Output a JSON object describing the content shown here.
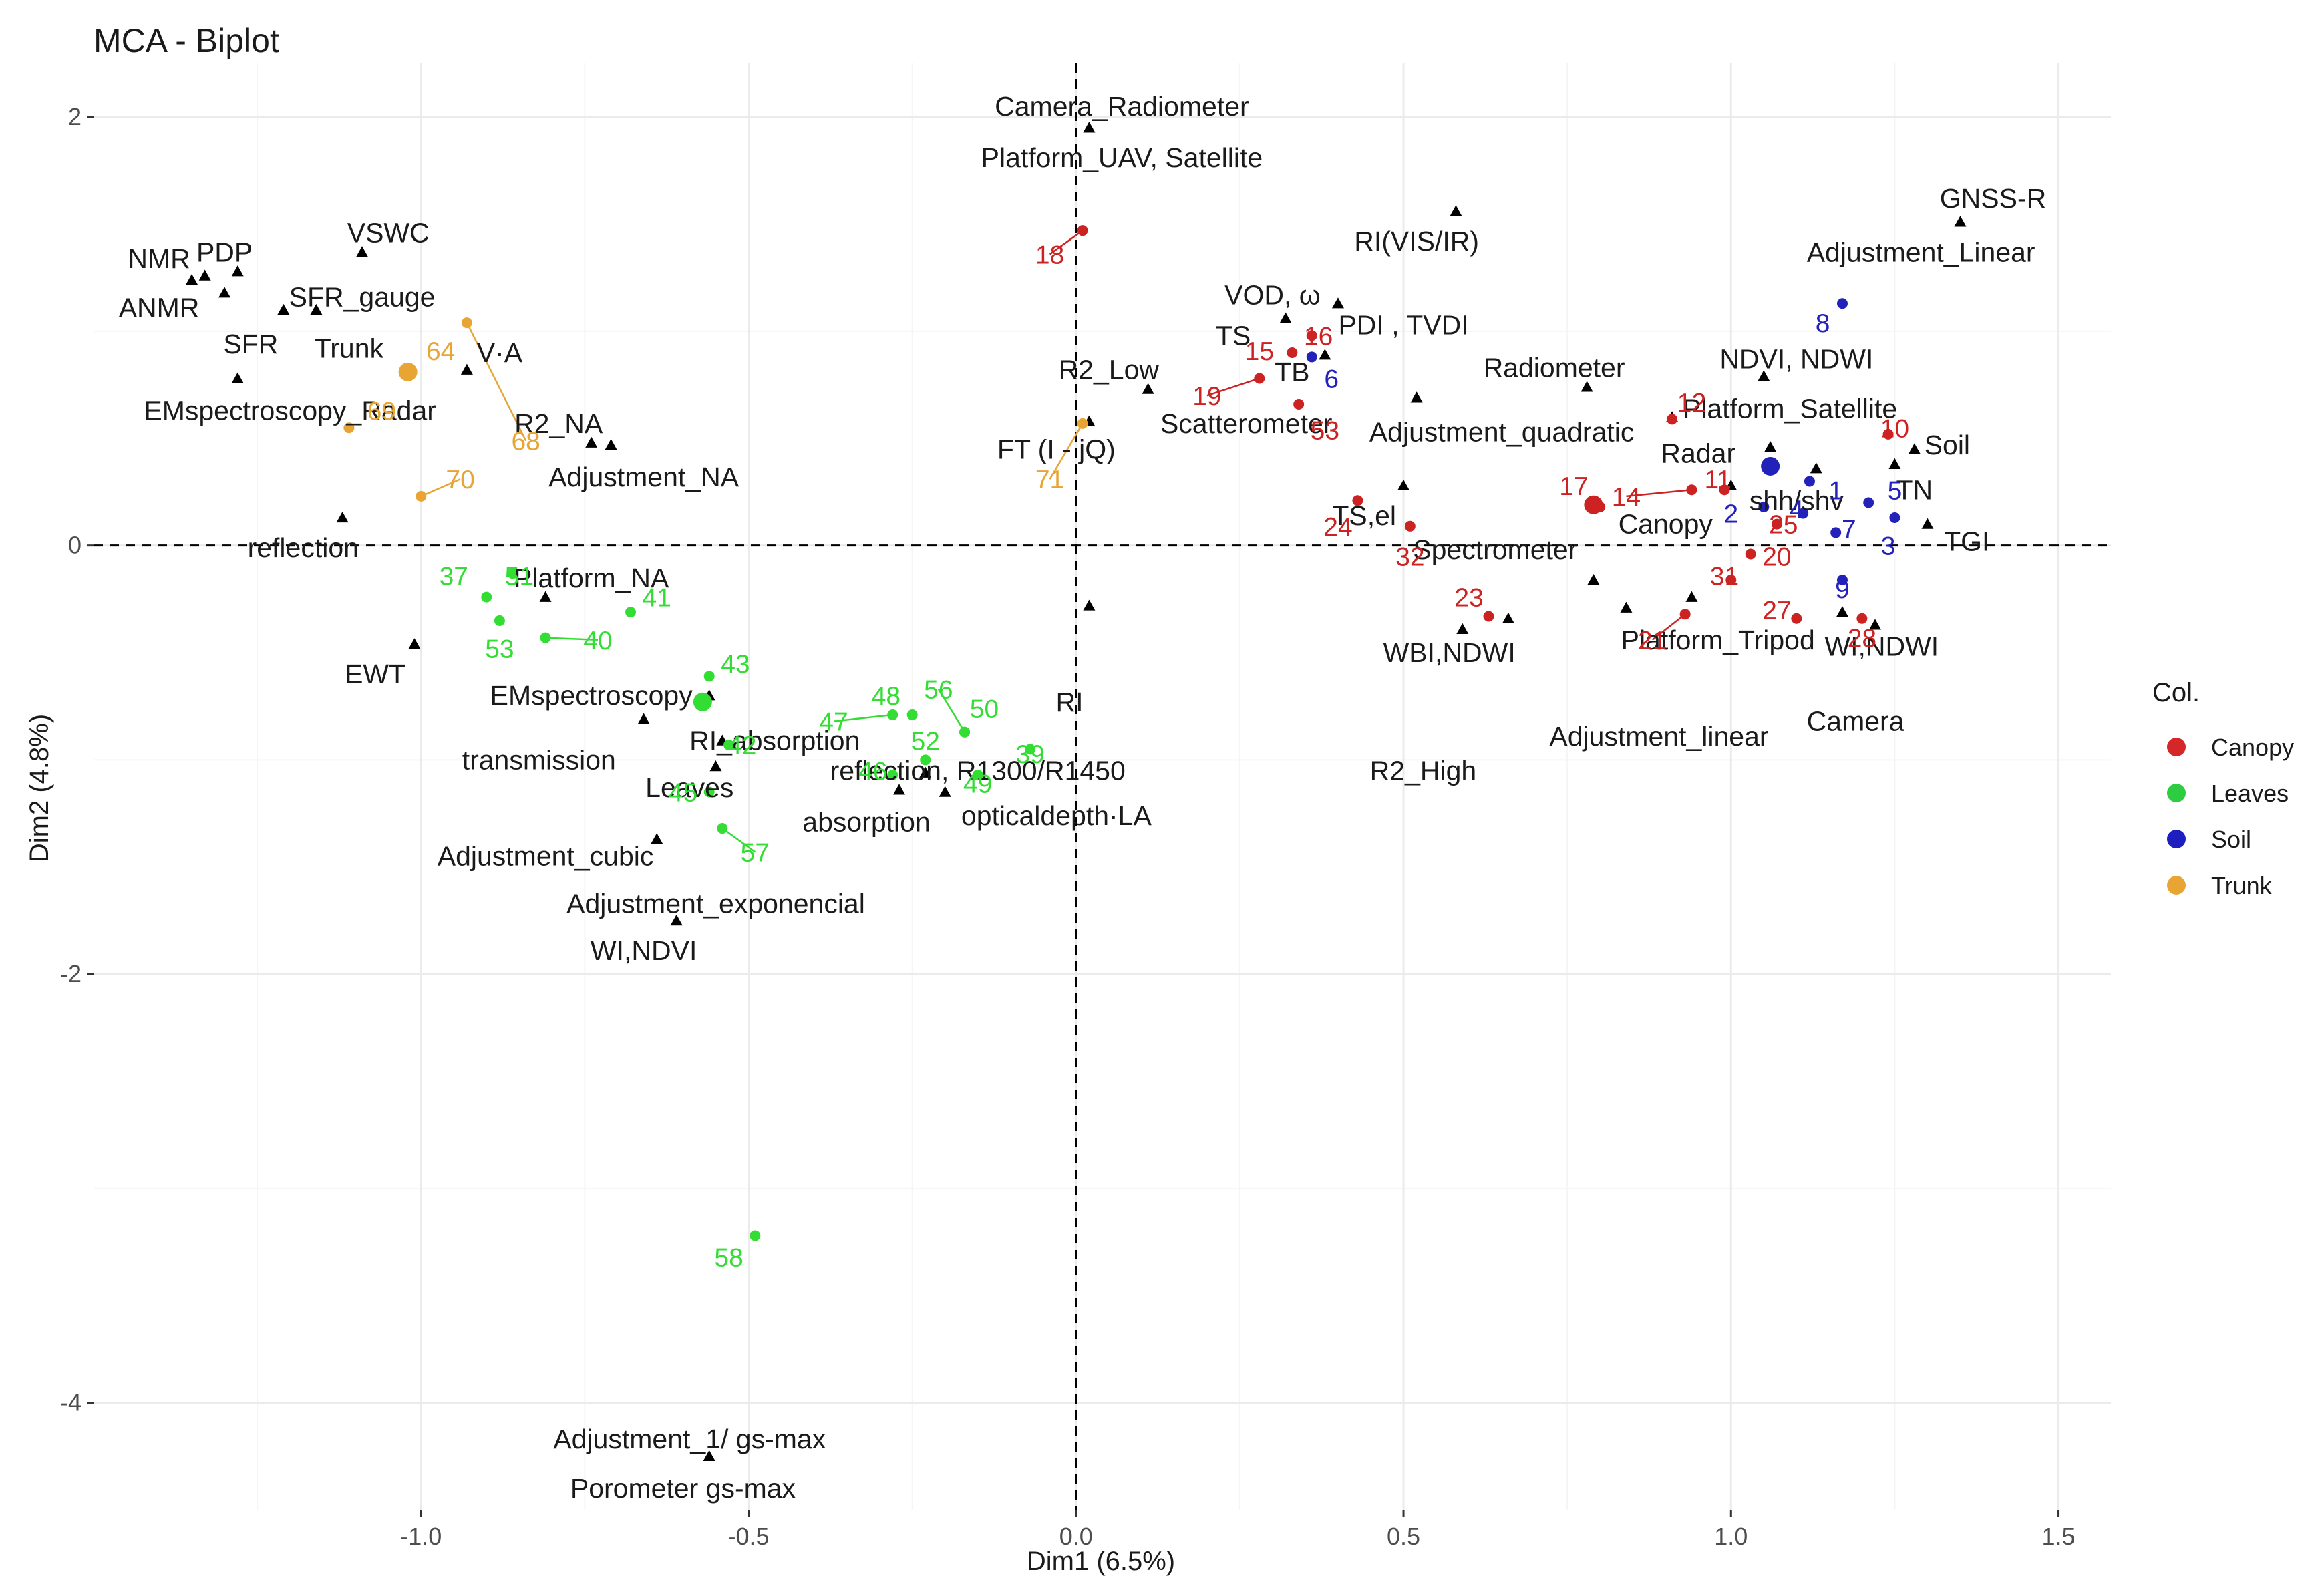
{
  "chart_data": {
    "type": "scatter",
    "title": "MCA - Biplot",
    "xlabel": "Dim1 (6.5%)",
    "ylabel": "Dim2 (4.8%)",
    "xlim": [
      -1.5,
      1.58
    ],
    "ylim": [
      -4.5,
      2.25
    ],
    "x_ticks": [
      -1.0,
      -0.5,
      0.0,
      0.5,
      1.0,
      1.5
    ],
    "x_tick_labels": [
      "-1.0",
      "-0.5",
      "0.0",
      "0.5",
      "1.0",
      "1.5"
    ],
    "y_ticks": [
      2,
      0,
      -2,
      -4
    ],
    "y_tick_labels": [
      "2",
      "0",
      "-2",
      "-4"
    ],
    "grid": true,
    "legend": {
      "title": "Col.",
      "position": "right",
      "entries": [
        {
          "name": "Canopy",
          "color": "#d62728"
        },
        {
          "name": "Leaves",
          "color": "#2ecc40"
        },
        {
          "name": "Soil",
          "color": "#1f1fbf"
        },
        {
          "name": "Trunk",
          "color": "#e8a534"
        }
      ]
    },
    "colors": {
      "Canopy": "#cc2222",
      "Leaves": "#33dd33",
      "Soil": "#2222bb",
      "Trunk": "#e8a534",
      "variable": "#000000"
    },
    "variables": [
      {
        "label": "Camera_Radiometer",
        "x": 0.02,
        "y": 1.95,
        "lx": 0.07,
        "ly": 2.05
      },
      {
        "label": "Platform_UAV, Satellite",
        "x": 0.02,
        "y": 1.95,
        "lx": 0.07,
        "ly": 1.81
      },
      {
        "label": "RI(VIS/IR)",
        "x": 0.58,
        "y": 1.56,
        "lx": 0.52,
        "ly": 1.42
      },
      {
        "label": "GNSS-R",
        "x": 1.35,
        "y": 1.51,
        "lx": 1.4,
        "ly": 1.62
      },
      {
        "label": "Adjustment_Linear",
        "x": 1.35,
        "y": 1.51,
        "lx": 1.29,
        "ly": 1.37
      },
      {
        "label": "NMR",
        "x": -1.33,
        "y": 1.26,
        "lx": -1.4,
        "ly": 1.34
      },
      {
        "label": "PDP",
        "x": -1.28,
        "y": 1.28,
        "lx": -1.3,
        "ly": 1.37
      },
      {
        "label": "VSWC",
        "x": -1.09,
        "y": 1.37,
        "lx": -1.05,
        "ly": 1.46
      },
      {
        "label": "SFR_gauge",
        "x": -1.16,
        "y": 1.1,
        "lx": -1.09,
        "ly": 1.16
      },
      {
        "label": "ANMR",
        "x": -1.35,
        "y": 1.24,
        "lx": -1.4,
        "ly": 1.11
      },
      {
        "label": "SFR",
        "x": -1.3,
        "y": 1.18,
        "lx": -1.26,
        "ly": 0.94
      },
      {
        "label": "Trunk",
        "x": -1.21,
        "y": 1.1,
        "lx": -1.11,
        "ly": 0.92
      },
      {
        "label": "V·A",
        "x": -0.93,
        "y": 0.82,
        "lx": -0.88,
        "ly": 0.9
      },
      {
        "label": "EMspectroscopy_Radar",
        "x": -1.28,
        "y": 0.78,
        "lx": -1.2,
        "ly": 0.63
      },
      {
        "label": "R2_NA",
        "x": -0.74,
        "y": 0.48,
        "lx": -0.79,
        "ly": 0.57
      },
      {
        "label": "Adjustment_NA",
        "x": -0.71,
        "y": 0.47,
        "lx": -0.66,
        "ly": 0.32
      },
      {
        "label": "reflection",
        "x": -1.12,
        "y": 0.13,
        "lx": -1.18,
        "ly": -0.01
      },
      {
        "label": "Platform_NA",
        "x": -0.81,
        "y": -0.24,
        "lx": -0.74,
        "ly": -0.15
      },
      {
        "label": "EWT",
        "x": -1.01,
        "y": -0.46,
        "lx": -1.07,
        "ly": -0.6
      },
      {
        "label": "EMspectroscopy",
        "x": -0.56,
        "y": -0.7,
        "lx": -0.74,
        "ly": -0.7
      },
      {
        "label": "transmission",
        "x": -0.66,
        "y": -0.81,
        "lx": -0.82,
        "ly": -1.0
      },
      {
        "label": "RI_absorption",
        "x": -0.54,
        "y": -0.91,
        "lx": -0.46,
        "ly": -0.91
      },
      {
        "label": "Leaves",
        "x": -0.55,
        "y": -1.03,
        "lx": -0.59,
        "ly": -1.13
      },
      {
        "label": "Adjustment_cubic",
        "x": -0.64,
        "y": -1.37,
        "lx": -0.81,
        "ly": -1.45
      },
      {
        "label": "Adjustment_exponencial",
        "x": -0.61,
        "y": -1.75,
        "lx": -0.55,
        "ly": -1.67
      },
      {
        "label": "WI,NDVI",
        "x": -0.61,
        "y": -1.75,
        "lx": -0.66,
        "ly": -1.89
      },
      {
        "label": "reflection, R1300/R1450",
        "x": -0.23,
        "y": -1.06,
        "lx": -0.15,
        "ly": -1.05
      },
      {
        "label": "absorption",
        "x": -0.27,
        "y": -1.14,
        "lx": -0.32,
        "ly": -1.29
      },
      {
        "label": "opticaldepth·LA",
        "x": -0.2,
        "y": -1.15,
        "lx": -0.03,
        "ly": -1.26
      },
      {
        "label": "Adjustment_1/ gs-max",
        "x": -0.56,
        "y": -4.25,
        "lx": -0.59,
        "ly": -4.17
      },
      {
        "label": "Porometer  gs-max",
        "x": -0.56,
        "y": -4.25,
        "lx": -0.6,
        "ly": -4.4
      },
      {
        "label": "R2_Low",
        "x": 0.11,
        "y": 0.73,
        "lx": 0.05,
        "ly": 0.82
      },
      {
        "label": "VOD,  ω",
        "x": 0.32,
        "y": 1.06,
        "lx": 0.3,
        "ly": 1.17
      },
      {
        "label": "TS",
        "x": 0.32,
        "y": 1.06,
        "lx": 0.24,
        "ly": 0.98
      },
      {
        "label": "TB",
        "x": 0.38,
        "y": 0.89,
        "lx": 0.33,
        "ly": 0.81
      },
      {
        "label": "PDI  , TVDI",
        "x": 0.4,
        "y": 1.13,
        "lx": 0.5,
        "ly": 1.03
      },
      {
        "label": "Radiometer",
        "x": 0.78,
        "y": 0.74,
        "lx": 0.73,
        "ly": 0.83
      },
      {
        "label": "Scatterometer",
        "x": 0.52,
        "y": 0.69,
        "lx": 0.26,
        "ly": 0.57
      },
      {
        "label": "Adjustment_quadratic",
        "x": 0.52,
        "y": 0.69,
        "lx": 0.65,
        "ly": 0.53
      },
      {
        "label": "FT (I - jQ)",
        "x": 0.02,
        "y": 0.58,
        "lx": -0.03,
        "ly": 0.45
      },
      {
        "label": "NDVI, NDWI",
        "x": 1.05,
        "y": 0.79,
        "lx": 1.1,
        "ly": 0.87
      },
      {
        "label": "Platform_Satellite",
        "x": 0.91,
        "y": 0.6,
        "lx": 1.09,
        "ly": 0.64
      },
      {
        "label": "Radar",
        "x": 1.06,
        "y": 0.46,
        "lx": 0.95,
        "ly": 0.43
      },
      {
        "label": "Soil",
        "x": 1.28,
        "y": 0.45,
        "lx": 1.33,
        "ly": 0.47
      },
      {
        "label": "shh/shv",
        "x": 1.13,
        "y": 0.36,
        "lx": 1.1,
        "ly": 0.21
      },
      {
        "label": "Canopy",
        "x": 1.0,
        "y": 0.28,
        "lx": 0.9,
        "ly": 0.1
      },
      {
        "label": "TN",
        "x": 1.25,
        "y": 0.38,
        "lx": 1.28,
        "ly": 0.26
      },
      {
        "label": "TGI",
        "x": 1.3,
        "y": 0.1,
        "lx": 1.36,
        "ly": 0.02
      },
      {
        "label": "TS,el",
        "x": 0.5,
        "y": 0.28,
        "lx": 0.44,
        "ly": 0.14
      },
      {
        "label": "Spectrometer",
        "x": 0.79,
        "y": -0.16,
        "lx": 0.64,
        "ly": -0.02
      },
      {
        "label": "WBI,NDWI",
        "x": 0.66,
        "y": -0.34,
        "lx": 0.57,
        "ly": -0.5
      },
      {
        "label": "R2_High",
        "x": 0.59,
        "y": -0.39,
        "lx": 0.53,
        "ly": -1.05
      },
      {
        "label": "Platform_Tripod",
        "x": 0.94,
        "y": -0.24,
        "lx": 0.98,
        "ly": -0.44
      },
      {
        "label": "Adjustment_linear",
        "x": 0.84,
        "y": -0.29,
        "lx": 0.89,
        "ly": -0.89
      },
      {
        "label": "WI,NDWI",
        "x": 1.17,
        "y": -0.31,
        "lx": 1.23,
        "ly": -0.47
      },
      {
        "label": "Camera",
        "x": 1.22,
        "y": -0.37,
        "lx": 1.19,
        "ly": -0.82
      },
      {
        "label": "RI",
        "x": 0.02,
        "y": -0.28,
        "lx": -0.01,
        "ly": -0.73
      }
    ],
    "individuals": [
      {
        "label": "18",
        "group": "Canopy",
        "x": 0.01,
        "y": 1.47,
        "lx": -0.04,
        "ly": 1.36
      },
      {
        "label": "15",
        "group": "Canopy",
        "x": 0.33,
        "y": 0.9,
        "lx": 0.28,
        "ly": 0.91
      },
      {
        "label": "16",
        "group": "Canopy",
        "x": 0.36,
        "y": 0.98,
        "lx": 0.37,
        "ly": 0.98
      },
      {
        "label": "19",
        "group": "Canopy",
        "x": 0.28,
        "y": 0.78,
        "lx": 0.2,
        "ly": 0.7
      },
      {
        "label": "53",
        "group": "Canopy",
        "x": 0.34,
        "y": 0.66,
        "lx": 0.38,
        "ly": 0.54
      },
      {
        "label": "12",
        "group": "Canopy",
        "x": 0.91,
        "y": 0.59,
        "lx": 0.94,
        "ly": 0.67
      },
      {
        "label": "10",
        "group": "Canopy",
        "x": 1.24,
        "y": 0.52,
        "lx": 1.25,
        "ly": 0.55
      },
      {
        "label": "17",
        "group": "Canopy",
        "x": 0.8,
        "y": 0.18,
        "lx": 0.76,
        "ly": 0.28
      },
      {
        "label": "14",
        "group": "Canopy",
        "x": 0.94,
        "y": 0.26,
        "lx": 0.84,
        "ly": 0.23
      },
      {
        "label": "11",
        "group": "Canopy",
        "x": 0.99,
        "y": 0.26,
        "lx": 0.98,
        "ly": 0.31
      },
      {
        "label": "24",
        "group": "Canopy",
        "x": 0.43,
        "y": 0.21,
        "lx": 0.4,
        "ly": 0.09
      },
      {
        "label": "32",
        "group": "Canopy",
        "x": 0.51,
        "y": 0.09,
        "lx": 0.51,
        "ly": -0.05
      },
      {
        "label": "20",
        "group": "Canopy",
        "x": 1.03,
        "y": -0.04,
        "lx": 1.07,
        "ly": -0.05
      },
      {
        "label": "31",
        "group": "Canopy",
        "x": 1.0,
        "y": -0.16,
        "lx": 0.99,
        "ly": -0.14
      },
      {
        "label": "27",
        "group": "Canopy",
        "x": 1.1,
        "y": -0.34,
        "lx": 1.07,
        "ly": -0.3
      },
      {
        "label": "21",
        "group": "Canopy",
        "x": 0.93,
        "y": -0.32,
        "lx": 0.88,
        "ly": -0.44
      },
      {
        "label": "23",
        "group": "Canopy",
        "x": 0.63,
        "y": -0.33,
        "lx": 0.6,
        "ly": -0.24
      },
      {
        "label": "28",
        "group": "Canopy",
        "x": 1.2,
        "y": -0.34,
        "lx": 1.2,
        "ly": -0.43
      },
      {
        "label": "25",
        "group": "Canopy",
        "x": 1.07,
        "y": 0.1,
        "lx": 1.08,
        "ly": 0.1
      },
      {
        "label": "8",
        "group": "Soil",
        "x": 1.17,
        "y": 1.13,
        "lx": 1.14,
        "ly": 1.04
      },
      {
        "label": "6",
        "group": "Soil",
        "x": 0.36,
        "y": 0.88,
        "lx": 0.39,
        "ly": 0.78
      },
      {
        "label": "1",
        "group": "Soil",
        "x": 1.12,
        "y": 0.3,
        "lx": 1.16,
        "ly": 0.26
      },
      {
        "label": "2",
        "group": "Soil",
        "x": 1.05,
        "y": 0.18,
        "lx": 1.0,
        "ly": 0.15
      },
      {
        "label": "4",
        "group": "Soil",
        "x": 1.11,
        "y": 0.15,
        "lx": 1.1,
        "ly": 0.17
      },
      {
        "label": "5",
        "group": "Soil",
        "x": 1.21,
        "y": 0.2,
        "lx": 1.25,
        "ly": 0.26
      },
      {
        "label": "7",
        "group": "Soil",
        "x": 1.16,
        "y": 0.06,
        "lx": 1.18,
        "ly": 0.08
      },
      {
        "label": "3",
        "group": "Soil",
        "x": 1.25,
        "y": 0.13,
        "lx": 1.24,
        "ly": 0.0
      },
      {
        "label": "9",
        "group": "Soil",
        "x": 1.17,
        "y": -0.16,
        "lx": 1.17,
        "ly": -0.2
      },
      {
        "label": "64",
        "group": "Trunk",
        "x": -1.02,
        "y": 0.81,
        "lx": -0.97,
        "ly": 0.91
      },
      {
        "label": "69",
        "group": "Trunk",
        "x": -1.11,
        "y": 0.55,
        "lx": -1.06,
        "ly": 0.63
      },
      {
        "label": "68",
        "group": "Trunk",
        "x": -0.93,
        "y": 1.04,
        "lx": -0.84,
        "ly": 0.49
      },
      {
        "label": "70",
        "group": "Trunk",
        "x": -1.0,
        "y": 0.23,
        "lx": -0.94,
        "ly": 0.31
      },
      {
        "label": "71",
        "group": "Trunk",
        "x": 0.01,
        "y": 0.57,
        "lx": -0.04,
        "ly": 0.31
      },
      {
        "label": "37",
        "group": "Leaves",
        "x": -0.9,
        "y": -0.24,
        "lx": -0.95,
        "ly": -0.14
      },
      {
        "label": "51",
        "group": "Leaves",
        "x": -0.86,
        "y": -0.13,
        "lx": -0.85,
        "ly": -0.14
      },
      {
        "label": "41",
        "group": "Leaves",
        "x": -0.68,
        "y": -0.31,
        "lx": -0.64,
        "ly": -0.24
      },
      {
        "label": "53",
        "group": "Leaves",
        "x": -0.88,
        "y": -0.35,
        "lx": -0.88,
        "ly": -0.48
      },
      {
        "label": "40",
        "group": "Leaves",
        "x": -0.81,
        "y": -0.43,
        "lx": -0.73,
        "ly": -0.44
      },
      {
        "label": "43",
        "group": "Leaves",
        "x": -0.56,
        "y": -0.61,
        "lx": -0.52,
        "ly": -0.55
      },
      {
        "label": "42",
        "group": "Leaves",
        "x": -0.53,
        "y": -0.93,
        "lx": -0.51,
        "ly": -0.93
      },
      {
        "label": "45",
        "group": "Leaves",
        "x": -0.56,
        "y": -1.15,
        "lx": -0.6,
        "ly": -1.15
      },
      {
        "label": "57",
        "group": "Leaves",
        "x": -0.54,
        "y": -1.32,
        "lx": -0.49,
        "ly": -1.43
      },
      {
        "label": "47",
        "group": "Leaves",
        "x": -0.28,
        "y": -0.79,
        "lx": -0.37,
        "ly": -0.82
      },
      {
        "label": "48",
        "group": "Leaves",
        "x": -0.25,
        "y": -0.79,
        "lx": -0.29,
        "ly": -0.7
      },
      {
        "label": "56",
        "group": "Leaves",
        "x": -0.17,
        "y": -0.87,
        "lx": -0.21,
        "ly": -0.67
      },
      {
        "label": "50",
        "group": "Leaves",
        "x": -0.17,
        "y": -0.87,
        "lx": -0.14,
        "ly": -0.76
      },
      {
        "label": "52",
        "group": "Leaves",
        "x": -0.23,
        "y": -1.0,
        "lx": -0.23,
        "ly": -0.91
      },
      {
        "label": "46",
        "group": "Leaves",
        "x": -0.28,
        "y": -1.07,
        "lx": -0.31,
        "ly": -1.05
      },
      {
        "label": "49",
        "group": "Leaves",
        "x": -0.15,
        "y": -1.07,
        "lx": -0.15,
        "ly": -1.11
      },
      {
        "label": "39",
        "group": "Leaves",
        "x": -0.07,
        "y": -0.95,
        "lx": -0.07,
        "ly": -0.97
      },
      {
        "label": "58",
        "group": "Leaves",
        "x": -0.49,
        "y": -3.22,
        "lx": -0.53,
        "ly": -3.32
      }
    ],
    "centroids": [
      {
        "group": "Canopy",
        "x": 0.79,
        "y": 0.19
      },
      {
        "group": "Leaves",
        "x": -0.57,
        "y": -0.73
      },
      {
        "group": "Soil",
        "x": 1.06,
        "y": 0.37
      },
      {
        "group": "Trunk",
        "x": -1.02,
        "y": 0.81
      }
    ]
  }
}
